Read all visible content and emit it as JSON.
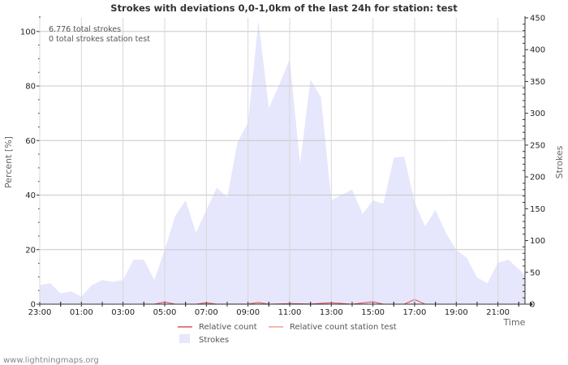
{
  "chart_data": {
    "type": "area",
    "title": "Strokes with deviations 0,0-1,0km of the last 24h for station: test",
    "ylabel": "Percent   [%]",
    "ylabel_right": "Strokes",
    "xlabel": "Time",
    "ylim": [
      0,
      105
    ],
    "ylim_right": [
      0,
      450
    ],
    "y_ticks": [
      0,
      20,
      40,
      60,
      80,
      100
    ],
    "y_ticks_right": [
      0,
      50,
      100,
      150,
      200,
      250,
      300,
      350,
      400,
      450
    ],
    "x_tick_labels": [
      "23:00",
      "01:00",
      "03:00",
      "05:00",
      "07:00",
      "09:00",
      "11:00",
      "13:00",
      "15:00",
      "17:00",
      "19:00",
      "21:00"
    ],
    "x_tick_hours": [
      0,
      2,
      4,
      6,
      8,
      10,
      12,
      14,
      16,
      18,
      20,
      22
    ],
    "x_range_hours": [
      0,
      23.3
    ],
    "annotations": [
      "6.776 total strokes",
      "0 total strokes station test"
    ],
    "series": [
      {
        "name": "Strokes",
        "axis": "right",
        "color": "#e6e6fc",
        "x_hours": [
          0,
          0.5,
          1,
          1.5,
          2,
          2.5,
          3,
          3.5,
          4,
          4.5,
          5,
          5.5,
          6,
          6.5,
          7,
          7.5,
          8,
          8.5,
          9,
          9.5,
          10,
          10.5,
          11,
          11.5,
          12,
          12.5,
          13,
          13.5,
          14,
          14.5,
          15,
          15.5,
          16,
          16.5,
          17,
          17.5,
          18,
          18.5,
          19,
          19.5,
          20,
          20.5,
          21,
          21.5,
          22,
          22.5,
          23,
          23.3
        ],
        "values": [
          30,
          33,
          17,
          20,
          12,
          30,
          38,
          35,
          38,
          70,
          70,
          38,
          85,
          138,
          163,
          112,
          148,
          183,
          168,
          255,
          285,
          445,
          308,
          345,
          385,
          220,
          353,
          325,
          163,
          172,
          180,
          142,
          163,
          158,
          230,
          232,
          160,
          122,
          148,
          112,
          85,
          73,
          42,
          33,
          65,
          70,
          55,
          45
        ]
      },
      {
        "name": "Relative count",
        "axis": "left",
        "color": "#e05050",
        "x_hours": [
          0,
          5.5,
          6,
          6.5,
          7.5,
          8,
          8.5,
          10,
          10.5,
          11,
          12,
          13,
          14,
          15,
          16,
          16.5,
          17.5,
          18,
          18.5,
          23.3
        ],
        "values": [
          0,
          0,
          0.8,
          0,
          0,
          0.5,
          0,
          0.1,
          0.6,
          0,
          0.2,
          0.1,
          0.5,
          0,
          0.9,
          0,
          0,
          1.7,
          0,
          0
        ]
      },
      {
        "name": "Relative count station test",
        "axis": "left",
        "color": "#f0a090",
        "x_hours": [
          0,
          23.3
        ],
        "values": [
          0,
          0
        ]
      }
    ]
  },
  "footer": "www.lightningmaps.org"
}
